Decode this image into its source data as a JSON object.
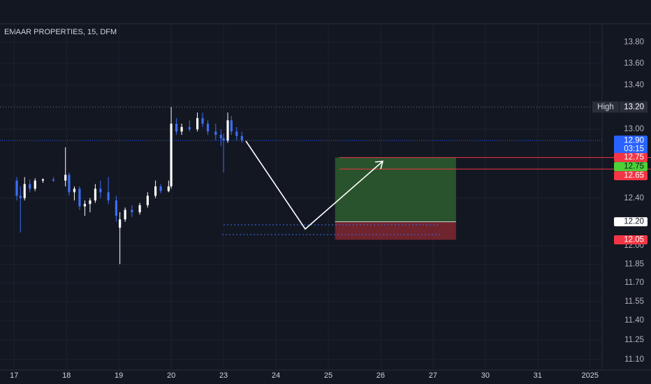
{
  "chart_data": {
    "type": "candlestick",
    "title": "EMAAR PROPERTIES, 15, DFM",
    "x": [
      0.05,
      0.12,
      0.2,
      0.3,
      0.4,
      0.55,
      0.75,
      0.98,
      1.05,
      1.15,
      1.25,
      1.35,
      1.45,
      1.55,
      1.65,
      1.8,
      1.95,
      2.02,
      2.12,
      2.25,
      2.4,
      2.55,
      2.7,
      2.8,
      2.95,
      3.0,
      3.1,
      3.2,
      3.35,
      3.5,
      3.6,
      3.7,
      3.85,
      3.95,
      4.0,
      4.08,
      4.15,
      4.25,
      4.35
    ],
    "open": [
      12.55,
      12.42,
      12.4,
      12.52,
      12.48,
      12.55,
      12.56,
      12.55,
      12.6,
      12.45,
      12.48,
      12.33,
      12.35,
      12.38,
      12.48,
      12.45,
      12.38,
      12.15,
      12.22,
      12.3,
      12.28,
      12.34,
      12.42,
      12.5,
      12.46,
      12.5,
      13.05,
      12.98,
      13.02,
      13.0,
      13.1,
      13.05,
      12.98,
      12.95,
      12.92,
      12.9,
      13.08,
      12.98,
      12.94
    ],
    "high": [
      12.58,
      12.5,
      12.58,
      12.56,
      12.57,
      12.57,
      12.58,
      12.84,
      12.62,
      12.5,
      12.5,
      12.38,
      12.4,
      12.52,
      12.55,
      12.58,
      12.42,
      12.28,
      12.32,
      12.34,
      12.36,
      12.45,
      12.55,
      12.52,
      12.55,
      13.2,
      13.1,
      13.05,
      13.08,
      13.15,
      13.15,
      13.08,
      13.05,
      13.0,
      12.96,
      13.15,
      13.12,
      13.02,
      12.98
    ],
    "low": [
      12.38,
      12.11,
      12.38,
      12.45,
      12.46,
      12.53,
      12.54,
      12.5,
      12.42,
      12.38,
      12.3,
      12.25,
      12.28,
      12.36,
      12.4,
      12.35,
      12.2,
      11.85,
      12.2,
      12.24,
      12.26,
      12.32,
      12.4,
      12.44,
      12.45,
      12.48,
      12.95,
      12.95,
      12.98,
      12.98,
      13.02,
      12.95,
      12.9,
      12.85,
      12.62,
      12.88,
      12.95,
      12.9,
      12.88
    ],
    "close": [
      12.42,
      12.4,
      12.52,
      12.48,
      12.55,
      12.56,
      12.55,
      12.6,
      12.45,
      12.48,
      12.33,
      12.35,
      12.38,
      12.48,
      12.45,
      12.38,
      12.25,
      12.22,
      12.3,
      12.28,
      12.34,
      12.42,
      12.5,
      12.46,
      12.5,
      13.05,
      12.98,
      13.02,
      13.0,
      13.1,
      13.05,
      12.98,
      12.95,
      12.92,
      12.9,
      13.08,
      12.98,
      12.94,
      12.9
    ],
    "up_color": "#ffffff",
    "down_color": "#3d6ef2",
    "xlim": [
      -0.27,
      11.23
    ],
    "xticks": [
      {
        "value": 0,
        "label": "17"
      },
      {
        "value": 1,
        "label": "18"
      },
      {
        "value": 2,
        "label": "19"
      },
      {
        "value": 3,
        "label": "20"
      },
      {
        "value": 4,
        "label": "23"
      },
      {
        "value": 5,
        "label": "24"
      },
      {
        "value": 6,
        "label": "25"
      },
      {
        "value": 7,
        "label": "26"
      },
      {
        "value": 8,
        "label": "27"
      },
      {
        "value": 9,
        "label": "30"
      },
      {
        "value": 10,
        "label": "31"
      },
      {
        "value": 11,
        "label": "2025"
      }
    ],
    "ylim": [
      11.03,
      13.97
    ],
    "yticks": [
      {
        "value": 11.1,
        "label": "11.10"
      },
      {
        "value": 11.25,
        "label": "11.25"
      },
      {
        "value": 11.4,
        "label": "11.40"
      },
      {
        "value": 11.55,
        "label": "11.55"
      },
      {
        "value": 11.7,
        "label": "11.70"
      },
      {
        "value": 11.85,
        "label": "11.85"
      },
      {
        "value": 12,
        "label": "12.00"
      },
      {
        "value": 12.4,
        "label": "12.40"
      },
      {
        "value": 13,
        "label": "13.00"
      },
      {
        "value": 13.4,
        "label": "13.40"
      },
      {
        "value": 13.6,
        "label": "13.60"
      },
      {
        "value": 13.8,
        "label": "13.80"
      }
    ],
    "log_scale": true,
    "grid": true,
    "high_marker": {
      "name": "High",
      "value": 13.2,
      "label": "13.20"
    },
    "last_price": {
      "value": 12.9,
      "label": "12.90",
      "countdown": "03:15",
      "color": "#2962ff"
    },
    "position": {
      "x": [
        6.13,
        8.44
      ],
      "target": 12.75,
      "entry": 12.2,
      "stop": 12.05,
      "profit_color": "#2e5e2e",
      "loss_color": "#7a2630"
    },
    "price_labels": [
      {
        "value": 12.75,
        "label": "12.75",
        "color": "#f23645",
        "line": true
      },
      {
        "value": 12.75,
        "label": "12.75",
        "color": "#4cd137"
      },
      {
        "value": 12.65,
        "label": "12.65",
        "color": "#f23645",
        "line": true
      },
      {
        "value": 12.2,
        "label": "12.20",
        "color": "#ffffff"
      },
      {
        "value": 12.05,
        "label": "12.05",
        "color": "#f23645"
      }
    ]
  }
}
